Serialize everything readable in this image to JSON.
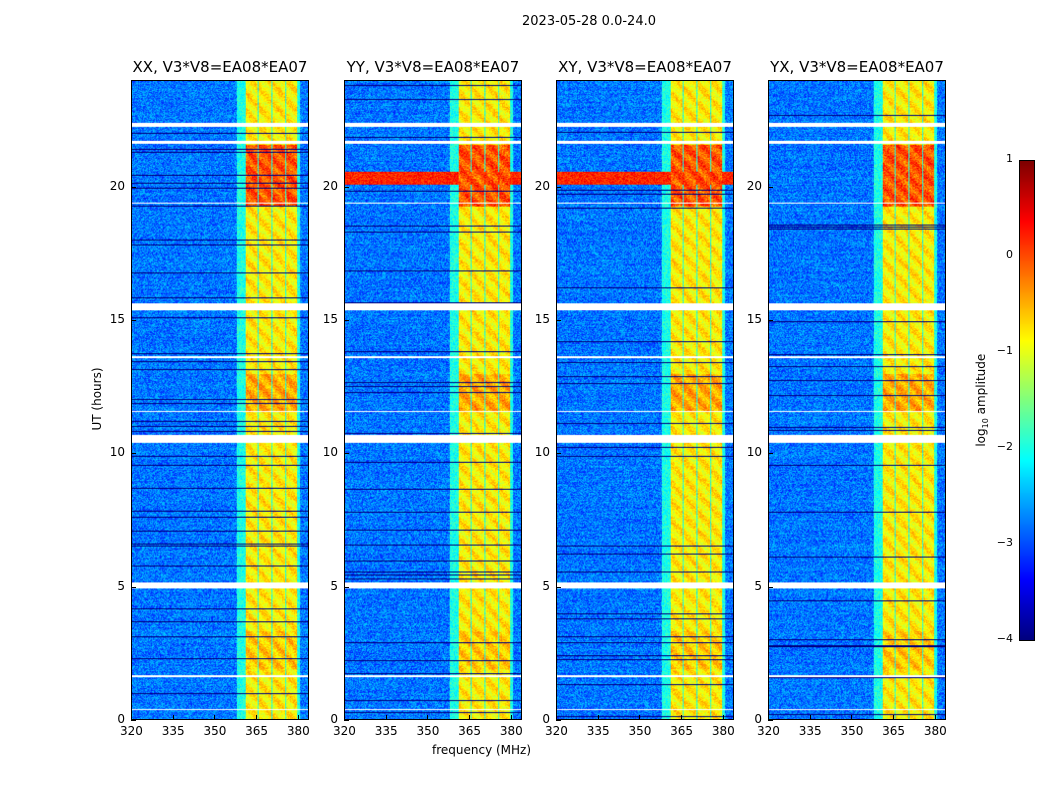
{
  "figure_title": "2023-05-28 0.0-24.0",
  "chart_data": {
    "type": "heatmap",
    "panels": [
      {
        "title": "XX, V3*V8=EA08*EA07",
        "horizontal_stripe": false
      },
      {
        "title": "YY, V3*V8=EA08*EA07",
        "horizontal_stripe": true
      },
      {
        "title": "XY, V3*V8=EA08*EA07",
        "horizontal_stripe": true
      },
      {
        "title": "YX, V3*V8=EA08*EA07",
        "horizontal_stripe": false
      }
    ],
    "xlabel": "frequency (MHz)",
    "ylabel": "UT (hours)",
    "xlim": [
      320,
      384
    ],
    "ylim": [
      0,
      24
    ],
    "xticks": [
      "320",
      "335",
      "350",
      "365",
      "380"
    ],
    "yticks": [
      "0",
      "5",
      "10",
      "15",
      "20"
    ],
    "colorbar": {
      "label": "log10 amplitude",
      "label_base": "log",
      "label_sub": "10",
      "label_rest": " amplitude",
      "range": [
        -4,
        1
      ],
      "ticks": [
        "1",
        "0",
        "−1",
        "−2",
        "−3",
        "−4"
      ],
      "colormap": "jet"
    },
    "background_level": -2.8,
    "rfi_channels_mhz": [
      [
        361,
        365.5
      ],
      [
        366,
        370.5
      ],
      [
        371,
        375.5
      ],
      [
        376,
        380
      ]
    ],
    "rfi_level": -0.8,
    "bright_ut_ranges": [
      [
        1.9,
        3.3,
        0.2
      ],
      [
        11.6,
        13.0,
        0.4
      ],
      [
        19.3,
        21.6,
        0.9
      ]
    ],
    "flagged_ut_ranges": [
      [
        4.95,
        5.15
      ],
      [
        10.4,
        10.7
      ],
      [
        15.4,
        15.65
      ],
      [
        21.65,
        21.75
      ],
      [
        22.3,
        22.45
      ],
      [
        11.55,
        11.62
      ],
      [
        19.4,
        19.45
      ],
      [
        1.6,
        1.65
      ],
      [
        0.35,
        0.4
      ],
      [
        13.6,
        13.65
      ]
    ]
  }
}
